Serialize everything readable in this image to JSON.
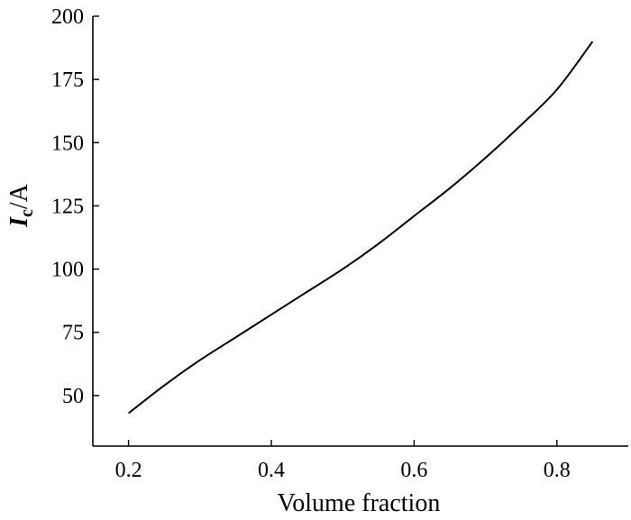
{
  "chart_data": {
    "type": "line",
    "xlabel": "Volume fraction",
    "ylabel": {
      "base": "I",
      "subscript": "c",
      "suffix": "/A"
    },
    "xlim": [
      0.15,
      0.9
    ],
    "ylim": [
      30,
      200
    ],
    "x_ticks": [
      0.2,
      0.4,
      0.6,
      0.8
    ],
    "x_tick_labels": [
      "0.2",
      "0.4",
      "0.6",
      "0.8"
    ],
    "y_ticks": [
      50,
      75,
      100,
      125,
      150,
      175,
      200
    ],
    "y_tick_labels": [
      "50",
      "75",
      "100",
      "125",
      "150",
      "175",
      "200"
    ],
    "grid": false,
    "series": [
      {
        "x": [
          0.2,
          0.25,
          0.3,
          0.35,
          0.4,
          0.45,
          0.5,
          0.55,
          0.6,
          0.65,
          0.7,
          0.75,
          0.8,
          0.85
        ],
        "y": [
          43,
          54,
          64,
          73,
          82,
          91,
          100,
          110,
          121,
          132,
          144,
          157,
          171,
          190
        ]
      }
    ]
  }
}
